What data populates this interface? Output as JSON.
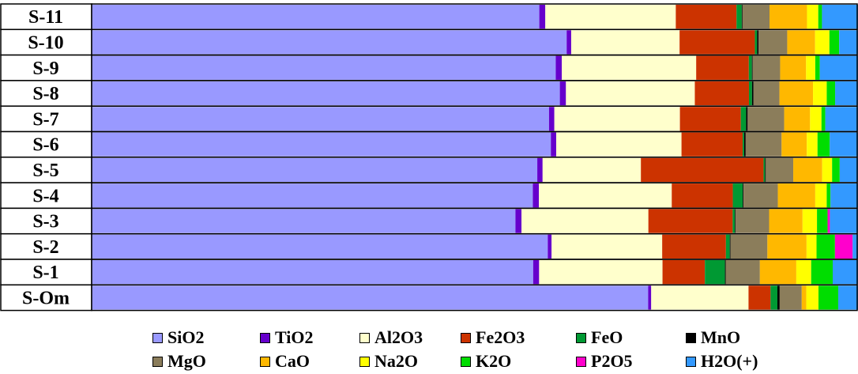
{
  "chart_data": {
    "type": "bar",
    "orientation": "horizontal",
    "stacked": "percent",
    "categories": [
      "S-11",
      "S-10",
      "S-9",
      "S-8",
      "S-7",
      "S-6",
      "S-5",
      "S-4",
      "S-3",
      "S-2",
      "S-1",
      "S-Om"
    ],
    "series": [
      {
        "name": "SiO2",
        "color": "#9999ff",
        "values": [
          59.7,
          63.1,
          60.8,
          61.4,
          60.1,
          60.1,
          58.5,
          57.8,
          55.8,
          59.4,
          59.4,
          73.2
        ]
      },
      {
        "name": "TiO2",
        "color": "#6600cc",
        "values": [
          0.8,
          0.6,
          0.8,
          0.8,
          0.7,
          0.7,
          0.7,
          0.8,
          0.8,
          0.5,
          0.8,
          0.4
        ]
      },
      {
        "name": "Al2O3",
        "color": "#ffffcc",
        "values": [
          17.4,
          14.4,
          17.6,
          16.9,
          16.5,
          16.4,
          12.9,
          17.4,
          16.7,
          14.4,
          16.6,
          12.8
        ]
      },
      {
        "name": "Fe2O3",
        "color": "#cc3300",
        "values": [
          8.1,
          10.0,
          6.9,
          7.1,
          8.0,
          8.0,
          16.1,
          8.0,
          11.1,
          8.3,
          5.7,
          2.9
        ]
      },
      {
        "name": "FeO",
        "color": "#009933",
        "values": [
          0.7,
          0.3,
          0.4,
          0.4,
          0.7,
          0.2,
          0.2,
          1.3,
          0.3,
          0.5,
          2.7,
          0.9
        ]
      },
      {
        "name": "MnO",
        "color": "#000000",
        "values": [
          0.1,
          0.2,
          0.1,
          0.2,
          0.2,
          0.2,
          0.1,
          0.1,
          0.1,
          0.1,
          0.1,
          0.3
        ]
      },
      {
        "name": "MgO",
        "color": "#8b7d5b",
        "values": [
          3.6,
          3.8,
          3.6,
          3.4,
          4.8,
          4.7,
          3.6,
          4.5,
          4.4,
          4.8,
          4.6,
          2.9
        ]
      },
      {
        "name": "CaO",
        "color": "#ffb800",
        "values": [
          5.0,
          3.7,
          3.4,
          4.4,
          3.4,
          3.3,
          3.8,
          4.9,
          4.4,
          5.1,
          4.9,
          0.6
        ]
      },
      {
        "name": "Na2O",
        "color": "#ffff00",
        "values": [
          1.5,
          1.9,
          1.2,
          1.8,
          1.5,
          1.4,
          1.3,
          1.5,
          1.9,
          1.3,
          2.0,
          1.6
        ]
      },
      {
        "name": "K2O",
        "color": "#00dd00",
        "values": [
          0.5,
          1.3,
          0.6,
          1.1,
          0.5,
          1.6,
          1.0,
          0.5,
          1.4,
          2.4,
          2.9,
          2.6
        ]
      },
      {
        "name": "P2O5",
        "color": "#ff00cc",
        "values": [
          0,
          0,
          0,
          0,
          0,
          0,
          0,
          0,
          0.3,
          2.3,
          0,
          0
        ]
      },
      {
        "name": "H2O(+)",
        "color": "#3399ff",
        "values": [
          4.8,
          2.5,
          5.0,
          3.0,
          4.3,
          3.7,
          2.4,
          3.6,
          3.7,
          0.7,
          3.4,
          2.6
        ]
      }
    ],
    "xlim": [
      0,
      100
    ],
    "grid": false,
    "legend": "bottom"
  }
}
